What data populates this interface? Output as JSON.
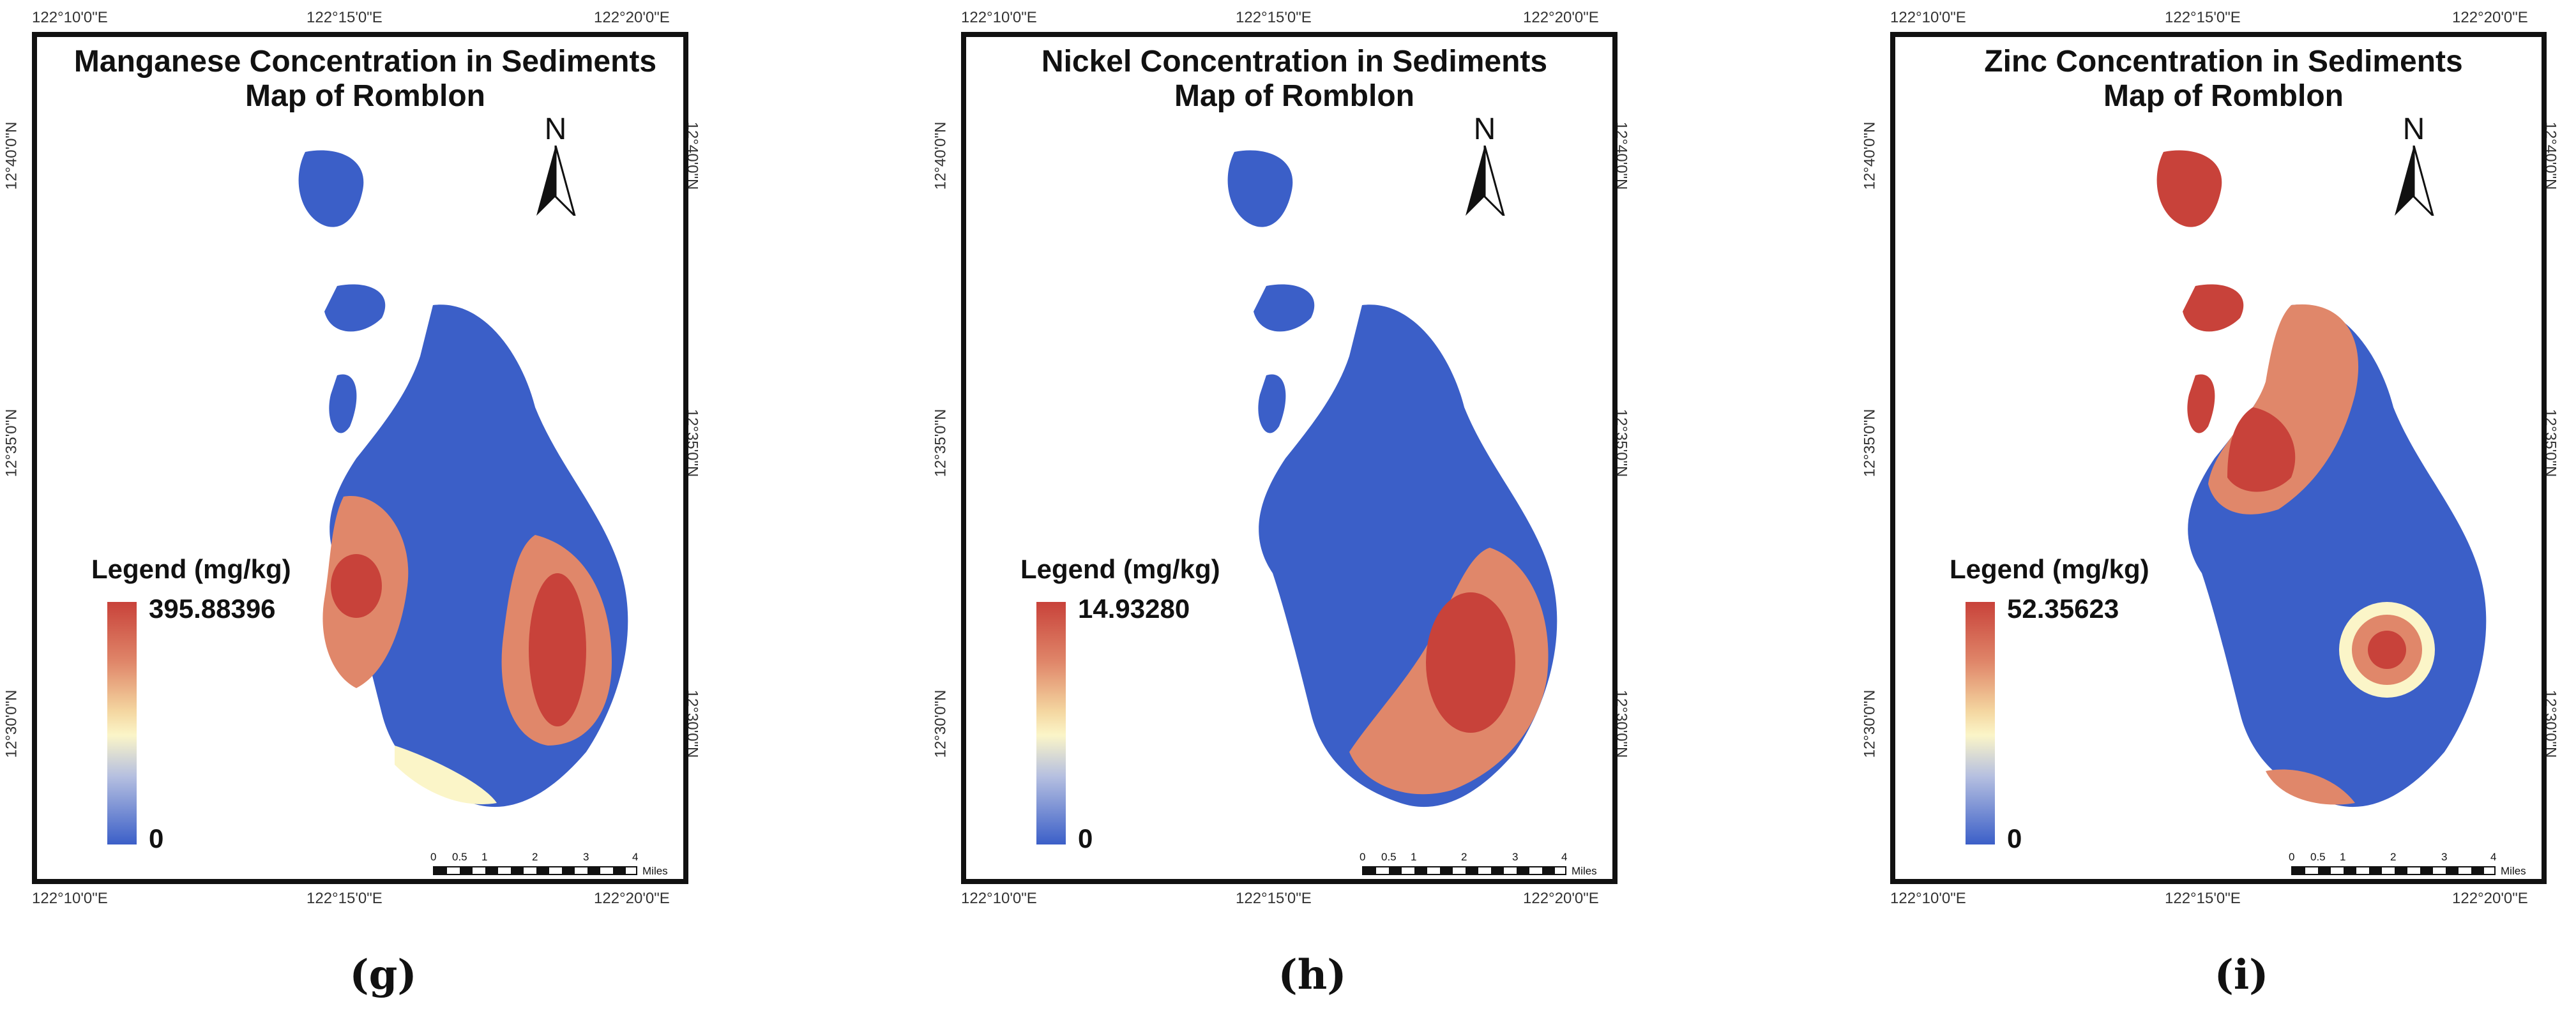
{
  "axis_ticks": {
    "top": [
      "122°10'0\"E",
      "122°15'0\"E",
      "122°20'0\"E"
    ],
    "bottom": [
      "122°10'0\"E",
      "122°15'0\"E",
      "122°20'0\"E"
    ],
    "left": [
      "12°40'0\"N",
      "12°35'0\"N",
      "12°30'0\"N"
    ],
    "right": [
      "12°40'0\"N",
      "12°35'0\"N",
      "12°30'0\"N"
    ]
  },
  "north_label": "N",
  "scale": {
    "labels": [
      "0",
      "0.5",
      "1",
      "2",
      "3",
      "4"
    ],
    "unit": "Miles"
  },
  "legend_title": "Legend (mg/kg)",
  "colors": {
    "high": "#c8423a",
    "mid_high": "#e0876a",
    "mid": "#fbf5c8",
    "low": "#3b5fc8"
  },
  "panels": [
    {
      "title_line1": "Manganese Concentration in Sediments",
      "title_line2": "Map of Romblon",
      "legend_max": "395.88396",
      "legend_min": "0",
      "caption": "(g)"
    },
    {
      "title_line1": "Nickel Concentration in Sediments",
      "title_line2": "Map of Romblon",
      "legend_max": "14.93280",
      "legend_min": "0",
      "caption": "(h)"
    },
    {
      "title_line1": "Zinc Concentration in Sediments",
      "title_line2": "Map of Romblon",
      "legend_max": "52.35623",
      "legend_min": "0",
      "caption": "(i)"
    }
  ]
}
